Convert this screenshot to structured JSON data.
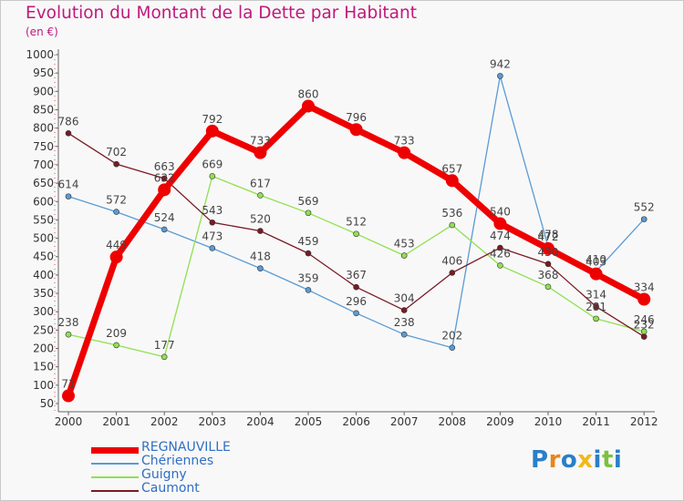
{
  "title": "Evolution du Montant de la Dette par Habitant",
  "subtitle": "(en €)",
  "logo": {
    "text": "Proxiti",
    "colors": [
      "#2a7fc8",
      "#e8851e",
      "#2a7fc8",
      "#f2b81b",
      "#2a7fc8",
      "#7cc142",
      "#2a7fc8"
    ]
  },
  "chart_data": {
    "type": "line",
    "x": [
      "2000",
      "2001",
      "2002",
      "2003",
      "2004",
      "2005",
      "2006",
      "2007",
      "2008",
      "2009",
      "2010",
      "2011",
      "2012"
    ],
    "ylim": [
      50,
      1000
    ],
    "yticks": [
      50,
      100,
      150,
      200,
      250,
      300,
      350,
      400,
      450,
      500,
      550,
      600,
      650,
      700,
      750,
      800,
      850,
      900,
      950,
      1000
    ],
    "grid": false,
    "legend_position": "bottom-left",
    "series": [
      {
        "name": "REGNAUVILLE",
        "color": "#ee0000",
        "width": 7,
        "marker": 7,
        "values": [
          71,
          449,
          632,
          792,
          733,
          860,
          796,
          733,
          657,
          540,
          472,
          403,
          334
        ]
      },
      {
        "name": "Chériennes",
        "color": "#5a9bd4",
        "width": 1.3,
        "marker": 3,
        "values": [
          614,
          572,
          524,
          473,
          418,
          359,
          296,
          238,
          202,
          942,
          478,
          410,
          552
        ]
      },
      {
        "name": "Guigny",
        "color": "#90e050",
        "width": 1.3,
        "marker": 3,
        "values": [
          238,
          209,
          177,
          669,
          617,
          569,
          512,
          453,
          536,
          426,
          368,
          281,
          246
        ]
      },
      {
        "name": "Caumont",
        "color": "#7a1a24",
        "width": 1.3,
        "marker": 3,
        "values": [
          786,
          702,
          663,
          543,
          520,
          459,
          367,
          304,
          406,
          474,
          430,
          314,
          232
        ]
      }
    ]
  }
}
